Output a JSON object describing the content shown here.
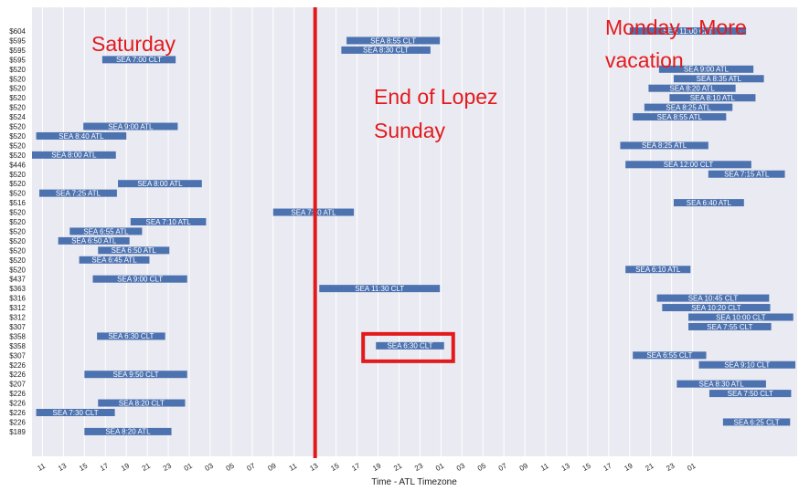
{
  "chart_data": {
    "type": "bar",
    "orientation": "horizontal-range",
    "xlabel": "Time - ATL Timezone",
    "x_ticks": [
      "11",
      "13",
      "15",
      "17",
      "19",
      "21",
      "23",
      "01",
      "03",
      "05",
      "07",
      "09",
      "11",
      "13",
      "15",
      "17",
      "19",
      "21",
      "23",
      "01",
      "03",
      "05",
      "07",
      "09",
      "11",
      "13",
      "15",
      "17",
      "19",
      "21",
      "23",
      "01"
    ],
    "x_range": [
      "Sat 10:00",
      "Tue 02:00"
    ],
    "grid": true,
    "bar_color": "#4c72b0",
    "flights": [
      {
        "price": "$604",
        "label": "SEA   11:00   CLT",
        "start": 57.0,
        "end": 68.1
      },
      {
        "price": "$595",
        "label": "SEA   8:55   CLT",
        "start": 30.0,
        "end": 38.9
      },
      {
        "price": "$595",
        "label": "SEA   8:30   CLT",
        "start": 29.5,
        "end": 38.0
      },
      {
        "price": "$595",
        "label": "SEA   7:00   CLT",
        "start": 6.7,
        "end": 13.7
      },
      {
        "price": "$520",
        "label": "SEA   9:00   ATL",
        "start": 59.8,
        "end": 68.8
      },
      {
        "price": "$520",
        "label": "SEA   8:35   ATL",
        "start": 61.2,
        "end": 69.8
      },
      {
        "price": "$520",
        "label": "SEA   8:20   ATL",
        "start": 58.8,
        "end": 67.1
      },
      {
        "price": "$520",
        "label": "SEA   8:10   ATL",
        "start": 60.8,
        "end": 69.0
      },
      {
        "price": "$520",
        "label": "SEA   8:25   ATL",
        "start": 58.4,
        "end": 66.8
      },
      {
        "price": "$524",
        "label": "SEA   8:55   ATL",
        "start": 57.3,
        "end": 66.2
      },
      {
        "price": "$520",
        "label": "SEA   9:00   ATL",
        "start": 4.9,
        "end": 13.9
      },
      {
        "price": "$520",
        "label": "SEA   8:40   ATL",
        "start": 0.4,
        "end": 9.0
      },
      {
        "price": "$520",
        "label": "SEA   8:25   ATL",
        "start": 56.1,
        "end": 64.5
      },
      {
        "price": "$520",
        "label": "SEA   8:00   ATL",
        "start": 0.0,
        "end": 8.0
      },
      {
        "price": "$446",
        "label": "SEA   12:00   CLT",
        "start": 56.6,
        "end": 68.6
      },
      {
        "price": "$520",
        "label": "SEA   7:15   ATL",
        "start": 64.5,
        "end": 71.8
      },
      {
        "price": "$520",
        "label": "SEA   8:00   ATL",
        "start": 8.2,
        "end": 16.2
      },
      {
        "price": "$520",
        "label": "SEA   7:25   ATL",
        "start": 0.7,
        "end": 8.1
      },
      {
        "price": "$516",
        "label": "SEA   6:40   ATL",
        "start": 61.2,
        "end": 67.9
      },
      {
        "price": "$520",
        "label": "SEA   7:40   ATL",
        "start": 23.0,
        "end": 30.7
      },
      {
        "price": "$520",
        "label": "SEA   7:10   ATL",
        "start": 9.4,
        "end": 16.6
      },
      {
        "price": "$520",
        "label": "SEA   6:55   ATL",
        "start": 3.6,
        "end": 10.5
      },
      {
        "price": "$520",
        "label": "SEA   6:50   ATL",
        "start": 2.5,
        "end": 9.3
      },
      {
        "price": "$520",
        "label": "SEA   6:50   ATL",
        "start": 6.3,
        "end": 13.1
      },
      {
        "price": "$520",
        "label": "SEA   6:45   ATL",
        "start": 4.5,
        "end": 11.2
      },
      {
        "price": "$520",
        "label": "SEA   6:10   ATL",
        "start": 56.6,
        "end": 62.8
      },
      {
        "price": "$437",
        "label": "SEA   9:00   CLT",
        "start": 5.8,
        "end": 14.8
      },
      {
        "price": "$363",
        "label": "SEA   11:30   CLT",
        "start": 27.4,
        "end": 38.9
      },
      {
        "price": "$316",
        "label": "SEA   10:45   CLT",
        "start": 59.6,
        "end": 70.3
      },
      {
        "price": "$312",
        "label": "SEA   10:20   CLT",
        "start": 60.1,
        "end": 70.4
      },
      {
        "price": "$312",
        "label": "SEA   10:00   CLT",
        "start": 62.6,
        "end": 72.6
      },
      {
        "price": "$307",
        "label": "SEA   7:55   CLT",
        "start": 62.6,
        "end": 70.5
      },
      {
        "price": "$358",
        "label": "SEA   6:30   CLT",
        "start": 6.2,
        "end": 12.7
      },
      {
        "price": "$358",
        "label": "SEA   6:30   CLT",
        "start": 32.8,
        "end": 39.3
      },
      {
        "price": "$307",
        "label": "SEA   6:55   CLT",
        "start": 57.3,
        "end": 64.3
      },
      {
        "price": "$226",
        "label": "SEA   9:10   CLT",
        "start": 63.6,
        "end": 72.8
      },
      {
        "price": "$226",
        "label": "SEA   9:50   CLT",
        "start": 5.0,
        "end": 14.8
      },
      {
        "price": "$207",
        "label": "SEA   8:30   ATL",
        "start": 61.5,
        "end": 70.0
      },
      {
        "price": "$226",
        "label": "SEA   7:50   CLT",
        "start": 64.6,
        "end": 72.4
      },
      {
        "price": "$226",
        "label": "SEA   8:20   CLT",
        "start": 6.3,
        "end": 14.6
      },
      {
        "price": "$226",
        "label": "SEA   7:30   CLT",
        "start": 0.4,
        "end": 7.9
      },
      {
        "price": "$226",
        "label": "SEA   6:25   CLT",
        "start": 65.9,
        "end": 72.3
      },
      {
        "price": "$189",
        "label": "SEA   8:20   ATL",
        "start": 5.0,
        "end": 13.3
      }
    ],
    "annotations": {
      "saturday": "Saturday",
      "end_lopez_1": "End of Lopez",
      "end_lopez_2": "Sunday",
      "monday_1": "Monday - More",
      "monday_2": "vacation",
      "divider_x": 27.0,
      "highlight_row": 33,
      "color": "#e31a1c"
    }
  }
}
